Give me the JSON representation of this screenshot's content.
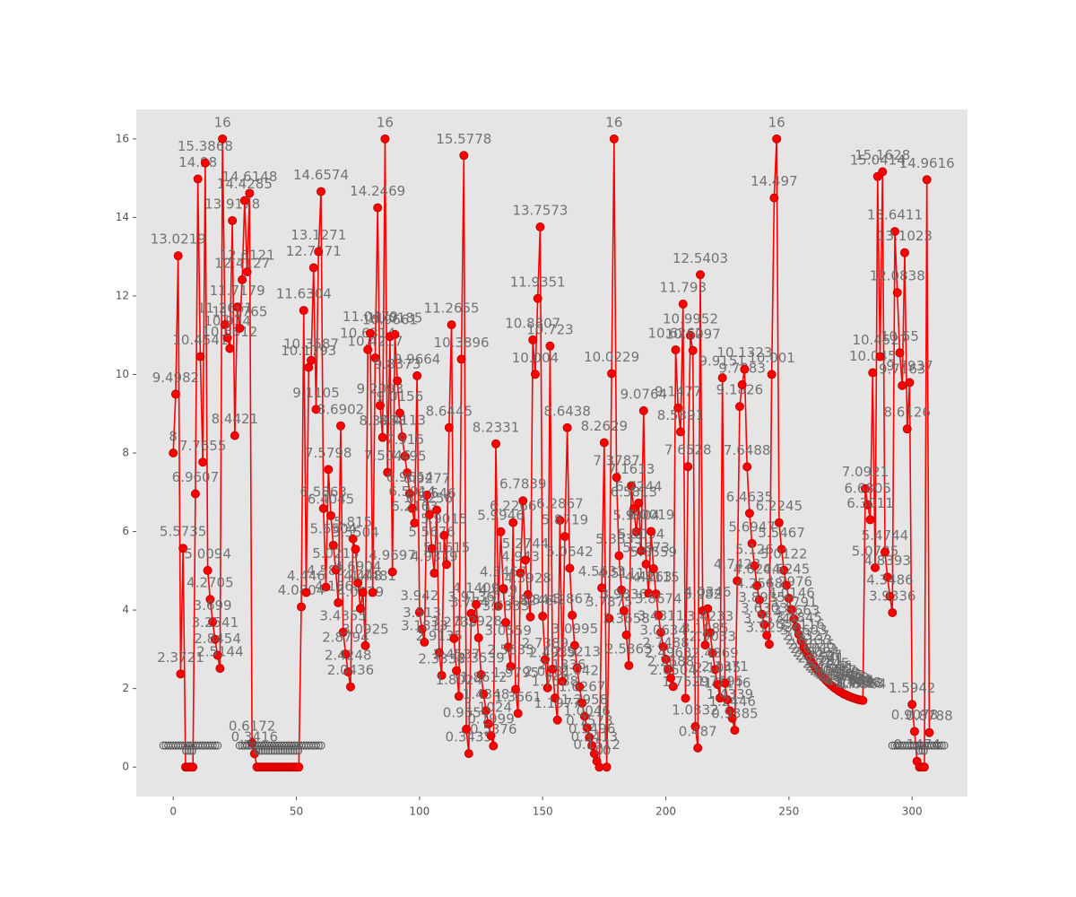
{
  "chart_data": {
    "type": "line",
    "xlim": [
      -15,
      322.5
    ],
    "ylim": [
      -0.75,
      16.75
    ],
    "xticks": [
      0,
      50,
      100,
      150,
      200,
      250,
      300
    ],
    "yticks": [
      0,
      2,
      4,
      6,
      8,
      10,
      12,
      14,
      16
    ],
    "background": "#e5e5e5",
    "series": [
      {
        "color": "#ff0000",
        "line": true,
        "marker_fill": true,
        "labels": true,
        "x": [
          0,
          1,
          2,
          3,
          4,
          5,
          6,
          7,
          8,
          9,
          10,
          11,
          12,
          13,
          14,
          15,
          16,
          17,
          18,
          19,
          20,
          21,
          22,
          23,
          24,
          25,
          26,
          27,
          28,
          29,
          30,
          31,
          32,
          33,
          34,
          35,
          36,
          37,
          38,
          39,
          40,
          41,
          42,
          43,
          44,
          45,
          46,
          47,
          48,
          49,
          50,
          51,
          52,
          53,
          54,
          55,
          56,
          57,
          58,
          59,
          60,
          61,
          62,
          63,
          64,
          65,
          66,
          67,
          68,
          69,
          70,
          71,
          72,
          73,
          74,
          75,
          76,
          77,
          78,
          79,
          80,
          81,
          82,
          83,
          84,
          85,
          86,
          87,
          88,
          89,
          90,
          91,
          92,
          93,
          94,
          95,
          96,
          97,
          98,
          99,
          100,
          101,
          102,
          103,
          104,
          105,
          106,
          107,
          108,
          109,
          110,
          111,
          112,
          113,
          114,
          115,
          116,
          117,
          118,
          119,
          120,
          121,
          122,
          123,
          124,
          125,
          126,
          127,
          128,
          129,
          130,
          131,
          132,
          133,
          134,
          135,
          136,
          137,
          138,
          139,
          140,
          141,
          142,
          143,
          144,
          145,
          146,
          147,
          148,
          149,
          150,
          151,
          152,
          153,
          154,
          155,
          156,
          157,
          158,
          159,
          160,
          161,
          162,
          163,
          164,
          165,
          166,
          167,
          168,
          169,
          170,
          171,
          172,
          173,
          174,
          175,
          176,
          177,
          178,
          179,
          180,
          181,
          182,
          183,
          184,
          185,
          186,
          187,
          188,
          189,
          190,
          191,
          192,
          193,
          194,
          195,
          196,
          197,
          198,
          199,
          200,
          201,
          202,
          203,
          204,
          205,
          206,
          207,
          208,
          209,
          210,
          211,
          212,
          213,
          214,
          215,
          216,
          217,
          218,
          219,
          220,
          221,
          222,
          223,
          224,
          225,
          226,
          227,
          228,
          229,
          230,
          231,
          232,
          233,
          234,
          235,
          236,
          237,
          238,
          239,
          240,
          241,
          242,
          243,
          244,
          245,
          246,
          247,
          248,
          249,
          250,
          251,
          252,
          253,
          254,
          255,
          256,
          257,
          258,
          259,
          260,
          261,
          262,
          263,
          264,
          265,
          266,
          267,
          268,
          269,
          270,
          271,
          272,
          273,
          274,
          275,
          276,
          277,
          278,
          279,
          280,
          281,
          282,
          283,
          284,
          285,
          286,
          287,
          288,
          289,
          290,
          291,
          292,
          293,
          294,
          295,
          296,
          297,
          298,
          299,
          300,
          301,
          302,
          303,
          304,
          305,
          306,
          307
        ],
        "values": [
          8,
          9.4982,
          13.0219,
          2.3721,
          5.5735,
          0,
          0,
          0,
          0,
          6.9607,
          14.98,
          10.4541,
          7.7655,
          15.3868,
          5.0094,
          4.2705,
          3.699,
          3.2541,
          2.8454,
          2.5144,
          16,
          11.2661,
          10.934,
          10.6612,
          13.9178,
          8.4421,
          11.7179,
          11.1765,
          12.4127,
          14.4285,
          12.6121,
          14.6148,
          0.6172,
          0.3416,
          0,
          0,
          0,
          0,
          0,
          0,
          0,
          0,
          0,
          0,
          0,
          0,
          0,
          0,
          0,
          0,
          0,
          0,
          4.0804,
          11.6304,
          4.446,
          10.1793,
          10.3587,
          12.7171,
          9.1105,
          13.1271,
          14.6574,
          6.5863,
          4.585,
          7.5798,
          6.4045,
          5.6504,
          5.0215,
          4.1863,
          8.6902,
          3.4355,
          2.8794,
          2.4248,
          2.0436,
          5.815,
          5.5504,
          4.6904,
          4.0379,
          4.448,
          3.0925,
          10.6314,
          11.0479,
          4.4481,
          10.4217,
          14.2469,
          9.2093,
          8.3958,
          16,
          7.5046,
          10.9661,
          4.9697,
          11.0185,
          9.8373,
          9.0156,
          8.4113,
          7.916,
          7.495,
          6.9654,
          6.5914,
          6.2163,
          9.9664,
          3.942,
          3.513,
          3.1813,
          6.9277,
          6.4256,
          5.5676,
          4.9379,
          6.546,
          2.9135,
          2.3338,
          5.9015,
          5.1615,
          8.6445,
          11.2655,
          3.2735,
          2.4537,
          1.8024,
          10.3896,
          15.5778,
          0.9657,
          0.3435,
          3.9136,
          3.7747,
          4.1409,
          3.2928,
          2.3539,
          1.8612,
          1.4348,
          1.1024,
          0.7999,
          0.5376,
          8.2331,
          4.099,
          5.9946,
          4.5467,
          3.6833,
          3.0559,
          2.5635,
          6.2266,
          1.9795,
          1.3661,
          4.943,
          6.7839,
          5.2744,
          4.3928,
          3.8246,
          10.8807,
          10.004,
          11.9351,
          13.7573,
          3.8442,
          2.7389,
          2.0181,
          10.723,
          2.4939,
          1.7588,
          1.1977,
          6.2867,
          2.1836,
          5.8719,
          8.6438,
          5.0642,
          3.867,
          3.0995,
          2.5213,
          2.042,
          1.6267,
          1.2958,
          1.0046,
          0.7573,
          0.5496,
          0.3413,
          0.1512,
          0,
          4.5633,
          8.2629,
          0,
          3.7875,
          10.0229,
          16,
          7.3787,
          5.3833,
          4.5111,
          3.9836,
          3.3658,
          2.5863,
          7.1613,
          6.5813,
          5.9904,
          6.7244,
          5.5094,
          9.0764,
          5.1673,
          4.4263,
          6.0019,
          5.0559,
          4.4115,
          3.8674,
          3.4311,
          3.0634,
          2.7488,
          2.4963,
          2.2688,
          2.0504,
          10.6262,
          9.1477,
          8.5391,
          11.793,
          1.7529,
          7.6528,
          10.9952,
          10.6097,
          1.0332,
          0.487,
          12.5403,
          3.982,
          3.1085,
          4.0346,
          3.4233,
          2.9033,
          2.4869,
          2.1045,
          1.7595,
          9.9151,
          2.1371,
          1.7146,
          1.4339,
          1.2446,
          0.9385,
          4.7423,
          9.1826,
          9.7383,
          10.1323,
          7.6488,
          6.4635,
          5.6947,
          5.126,
          4.6204,
          4.2568,
          3.8935,
          3.6303,
          3.3574,
          3.1293,
          10.001,
          14.497,
          16,
          6.2245,
          5.5467,
          5.0122,
          4.6245,
          4.2976,
          4.0146,
          3.7791,
          3.5663,
          3.3845,
          3.2116,
          3.0603,
          2.9327,
          2.8133,
          2.7026,
          2.6012,
          2.5094,
          2.4307,
          2.3541,
          2.281,
          2.2145,
          2.1546,
          2.0941,
          2.0417,
          1.9938,
          1.9503,
          1.9105,
          1.8726,
          1.8418,
          1.8124,
          1.7864,
          1.763,
          1.742,
          1.7238,
          1.7098,
          1.6964,
          7.0921,
          6.6805,
          6.3011,
          10.045,
          5.0785,
          15.0414,
          10.4527,
          15.1628,
          5.4744,
          4.8393,
          4.3486,
          3.9336,
          13.6411,
          12.0838,
          10.55,
          9.7163,
          13.1023,
          8.6126,
          9.7937,
          1.5942,
          0.9078,
          0.1474,
          0,
          0,
          0,
          14.9616,
          0.8788
        ]
      },
      {
        "color": "#555555",
        "line": false,
        "marker_fill": false,
        "labels": false,
        "x": [
          -4,
          -3,
          -2,
          -1,
          0,
          1,
          2,
          3,
          4,
          5,
          6,
          7,
          8,
          9,
          10,
          11,
          12,
          13,
          14,
          15,
          16,
          17,
          18,
          27,
          28,
          29,
          30,
          31,
          32,
          33,
          34,
          35,
          36,
          37,
          38,
          39,
          40,
          41,
          42,
          43,
          44,
          45,
          46,
          47,
          48,
          49,
          50,
          51,
          52,
          53,
          54,
          55,
          56,
          57,
          58,
          59,
          60,
          292,
          293,
          294,
          295,
          296,
          297,
          298,
          299,
          300,
          301,
          302,
          303,
          304,
          305,
          306,
          307,
          308,
          309,
          310,
          311,
          312,
          313
        ],
        "values": [
          0.55,
          0.55,
          0.55,
          0.55,
          0.55,
          0.55,
          0.55,
          0.55,
          0.55,
          0.55,
          0.55,
          0.55,
          0.55,
          0.55,
          0.55,
          0.55,
          0.55,
          0.55,
          0.55,
          0.55,
          0.55,
          0.55,
          0.55,
          0.55,
          0.55,
          0.55,
          0.55,
          0.55,
          0.55,
          0.55,
          0.55,
          0.55,
          0.55,
          0.55,
          0.55,
          0.55,
          0.55,
          0.55,
          0.55,
          0.55,
          0.55,
          0.55,
          0.55,
          0.55,
          0.55,
          0.55,
          0.55,
          0.55,
          0.55,
          0.55,
          0.55,
          0.55,
          0.55,
          0.55,
          0.55,
          0.55,
          0.55,
          0.55,
          0.55,
          0.55,
          0.55,
          0.55,
          0.55,
          0.55,
          0.55,
          0.55,
          0.55,
          0.55,
          0.55,
          0.55,
          0.55,
          0.55,
          0.55,
          0.55,
          0.55,
          0.55,
          0.55,
          0.55,
          0.55
        ]
      }
    ]
  }
}
